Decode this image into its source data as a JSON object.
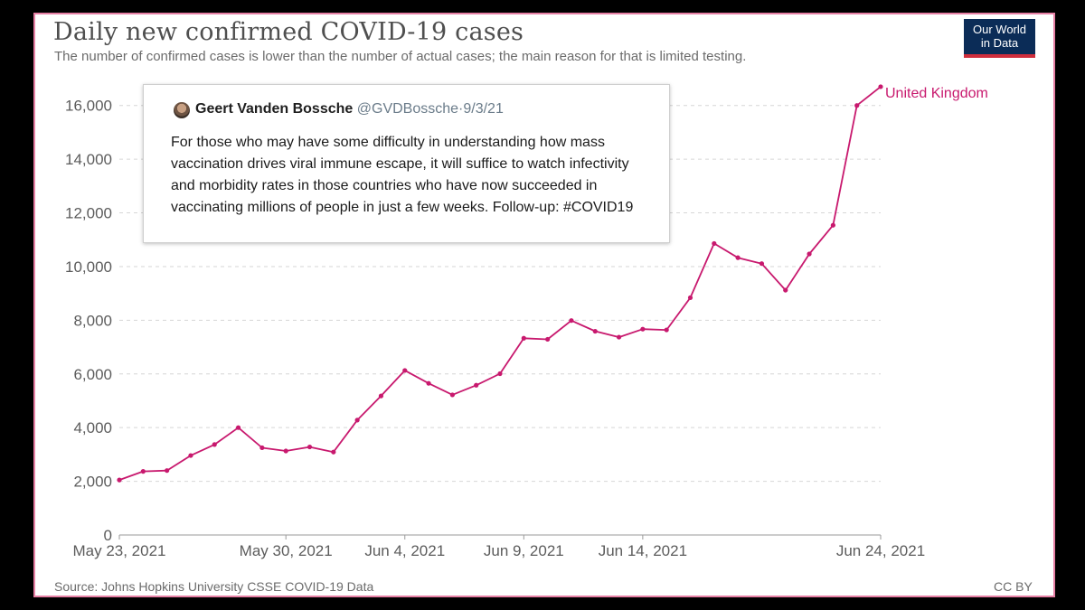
{
  "title": "Daily new confirmed COVID-19 cases",
  "subtitle": "The number of confirmed cases is lower than the number of actual cases; the main reason for that is limited testing.",
  "logo": {
    "line1": "Our World",
    "line2": "in Data"
  },
  "source": "Source: Johns Hopkins University CSSE COVID-19 Data",
  "license": "CC BY",
  "colors": {
    "series": "#c8196e",
    "frame": "#e67fa4",
    "logo_bg": "#0b2c57",
    "logo_bar": "#cf2d3c"
  },
  "tweet": {
    "avatar_icon": "avatar-photo-icon",
    "author": "Geert Vanden Bossche",
    "handle": "@GVDBossche",
    "separator": "·",
    "date": "9/3/21",
    "text": "For those who may have some difficulty in understanding how mass vaccination drives viral immune escape, it will suffice to watch infectivity and morbidity rates in those countries who have now succeeded in vaccinating millions of people in just a few weeks. Follow-up: #COVID19"
  },
  "chart_data": {
    "type": "line",
    "title": "Daily new confirmed COVID-19 cases",
    "x": [
      "2021-05-23",
      "2021-05-24",
      "2021-05-25",
      "2021-05-26",
      "2021-05-27",
      "2021-05-28",
      "2021-05-29",
      "2021-05-30",
      "2021-05-31",
      "2021-06-01",
      "2021-06-02",
      "2021-06-03",
      "2021-06-04",
      "2021-06-05",
      "2021-06-06",
      "2021-06-07",
      "2021-06-08",
      "2021-06-09",
      "2021-06-10",
      "2021-06-11",
      "2021-06-12",
      "2021-06-13",
      "2021-06-14",
      "2021-06-15",
      "2021-06-16",
      "2021-06-17",
      "2021-06-18",
      "2021-06-19",
      "2021-06-20",
      "2021-06-21",
      "2021-06-22",
      "2021-06-23",
      "2021-06-24"
    ],
    "series": [
      {
        "name": "United Kingdom",
        "values": [
          2050,
          2370,
          2400,
          2960,
          3370,
          4000,
          3250,
          3130,
          3280,
          3090,
          4280,
          5180,
          6130,
          5650,
          5220,
          5580,
          6010,
          7330,
          7290,
          7990,
          7590,
          7370,
          7670,
          7640,
          8840,
          10860,
          10330,
          10110,
          9120,
          10470,
          11540,
          16000,
          16700
        ]
      }
    ],
    "xtick_labels": [
      {
        "index": 0,
        "label": "May 23, 2021"
      },
      {
        "index": 7,
        "label": "May 30, 2021"
      },
      {
        "index": 12,
        "label": "Jun 4, 2021"
      },
      {
        "index": 17,
        "label": "Jun 9, 2021"
      },
      {
        "index": 22,
        "label": "Jun 14, 2021"
      },
      {
        "index": 32,
        "label": "Jun 24, 2021"
      }
    ],
    "yticks": [
      0,
      2000,
      4000,
      6000,
      8000,
      10000,
      12000,
      14000,
      16000
    ],
    "ytick_labels": [
      "0",
      "2,000",
      "4,000",
      "6,000",
      "8,000",
      "10,000",
      "12,000",
      "14,000",
      "16,000"
    ],
    "ylim": [
      0,
      16900
    ],
    "grid": "horizontal dashed",
    "legend": "end-of-line label"
  }
}
